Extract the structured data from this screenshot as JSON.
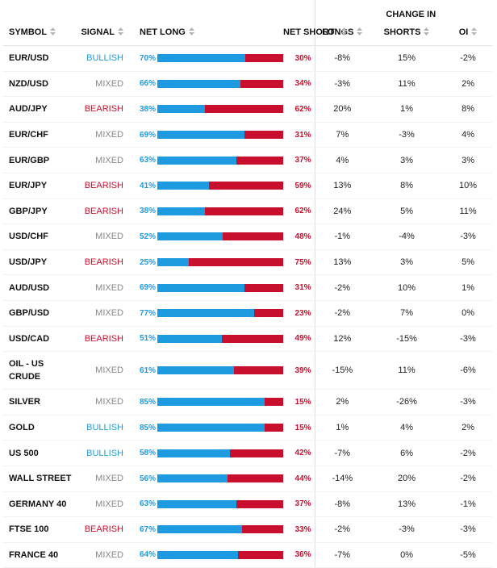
{
  "header": {
    "change_in": "CHANGE IN",
    "symbol": "SYMBOL",
    "signal": "SIGNAL",
    "net_long": "NET LONG",
    "net_short": "NET SHORT",
    "longs": "LONGS",
    "shorts": "SHORTS",
    "oi": "OI"
  },
  "colors": {
    "long": "#1e9ae0",
    "short": "#c8102e",
    "mixed": "#888888"
  },
  "rows": [
    {
      "symbol": "EUR/USD",
      "signal": "BULLISH",
      "net_long": "70%",
      "long_pct": 70,
      "net_short": "30%",
      "longs": "-8%",
      "shorts": "15%",
      "oi": "-2%"
    },
    {
      "symbol": "NZD/USD",
      "signal": "MIXED",
      "net_long": "66%",
      "long_pct": 66,
      "net_short": "34%",
      "longs": "-3%",
      "shorts": "11%",
      "oi": "2%"
    },
    {
      "symbol": "AUD/JPY",
      "signal": "BEARISH",
      "net_long": "38%",
      "long_pct": 38,
      "net_short": "62%",
      "longs": "20%",
      "shorts": "1%",
      "oi": "8%"
    },
    {
      "symbol": "EUR/CHF",
      "signal": "MIXED",
      "net_long": "69%",
      "long_pct": 69,
      "net_short": "31%",
      "longs": "7%",
      "shorts": "-3%",
      "oi": "4%"
    },
    {
      "symbol": "EUR/GBP",
      "signal": "MIXED",
      "net_long": "63%",
      "long_pct": 63,
      "net_short": "37%",
      "longs": "4%",
      "shorts": "3%",
      "oi": "3%"
    },
    {
      "symbol": "EUR/JPY",
      "signal": "BEARISH",
      "net_long": "41%",
      "long_pct": 41,
      "net_short": "59%",
      "longs": "13%",
      "shorts": "8%",
      "oi": "10%"
    },
    {
      "symbol": "GBP/JPY",
      "signal": "BEARISH",
      "net_long": "38%",
      "long_pct": 38,
      "net_short": "62%",
      "longs": "24%",
      "shorts": "5%",
      "oi": "11%"
    },
    {
      "symbol": "USD/CHF",
      "signal": "MIXED",
      "net_long": "52%",
      "long_pct": 52,
      "net_short": "48%",
      "longs": "-1%",
      "shorts": "-4%",
      "oi": "-3%"
    },
    {
      "symbol": "USD/JPY",
      "signal": "BEARISH",
      "net_long": "25%",
      "long_pct": 25,
      "net_short": "75%",
      "longs": "13%",
      "shorts": "3%",
      "oi": "5%"
    },
    {
      "symbol": "AUD/USD",
      "signal": "MIXED",
      "net_long": "69%",
      "long_pct": 69,
      "net_short": "31%",
      "longs": "-2%",
      "shorts": "10%",
      "oi": "1%"
    },
    {
      "symbol": "GBP/USD",
      "signal": "MIXED",
      "net_long": "77%",
      "long_pct": 77,
      "net_short": "23%",
      "longs": "-2%",
      "shorts": "7%",
      "oi": "0%"
    },
    {
      "symbol": "USD/CAD",
      "signal": "BEARISH",
      "net_long": "51%",
      "long_pct": 51,
      "net_short": "49%",
      "longs": "12%",
      "shorts": "-15%",
      "oi": "-3%"
    },
    {
      "symbol": "OIL - US",
      "symbol_line2": "CRUDE",
      "signal": "MIXED",
      "net_long": "61%",
      "long_pct": 61,
      "net_short": "39%",
      "longs": "-15%",
      "shorts": "11%",
      "oi": "-6%"
    },
    {
      "symbol": "SILVER",
      "signal": "MIXED",
      "net_long": "85%",
      "long_pct": 85,
      "net_short": "15%",
      "longs": "2%",
      "shorts": "-26%",
      "oi": "-3%"
    },
    {
      "symbol": "GOLD",
      "signal": "BULLISH",
      "net_long": "85%",
      "long_pct": 85,
      "net_short": "15%",
      "longs": "1%",
      "shorts": "4%",
      "oi": "2%"
    },
    {
      "symbol": "US 500",
      "signal": "BULLISH",
      "net_long": "58%",
      "long_pct": 58,
      "net_short": "42%",
      "longs": "-7%",
      "shorts": "6%",
      "oi": "-2%"
    },
    {
      "symbol": "WALL STREET",
      "signal": "MIXED",
      "net_long": "56%",
      "long_pct": 56,
      "net_short": "44%",
      "longs": "-14%",
      "shorts": "20%",
      "oi": "-2%"
    },
    {
      "symbol": "GERMANY 40",
      "signal": "MIXED",
      "net_long": "63%",
      "long_pct": 63,
      "net_short": "37%",
      "longs": "-8%",
      "shorts": "13%",
      "oi": "-1%"
    },
    {
      "symbol": "FTSE 100",
      "signal": "BEARISH",
      "net_long": "67%",
      "long_pct": 67,
      "net_short": "33%",
      "longs": "-2%",
      "shorts": "-3%",
      "oi": "-3%"
    },
    {
      "symbol": "FRANCE 40",
      "signal": "MIXED",
      "net_long": "64%",
      "long_pct": 64,
      "net_short": "36%",
      "longs": "-7%",
      "shorts": "0%",
      "oi": "-5%"
    }
  ]
}
